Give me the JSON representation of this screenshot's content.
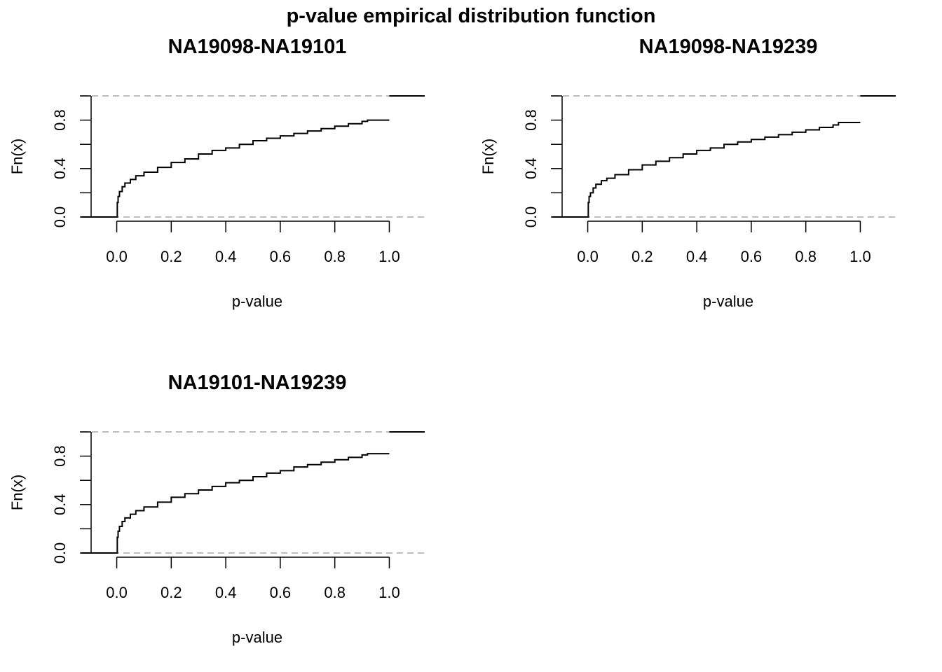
{
  "figure": {
    "title": "p-value empirical distribution function"
  },
  "chart_data": [
    {
      "type": "line",
      "step": true,
      "title": "NA19098-NA19101",
      "xlabel": "p-value",
      "ylabel": "Fn(x)",
      "xlim": [
        -0.13,
        1.13
      ],
      "ylim": [
        0,
        1
      ],
      "xticks": [
        "0.0",
        "0.2",
        "0.4",
        "0.6",
        "0.8",
        "1.0"
      ],
      "yticks": [
        "0.0",
        "0.4",
        "0.8"
      ],
      "reference_lines": [
        0,
        1
      ],
      "x": [
        0.0,
        0.002,
        0.005,
        0.01,
        0.02,
        0.03,
        0.05,
        0.07,
        0.1,
        0.15,
        0.2,
        0.25,
        0.3,
        0.35,
        0.4,
        0.45,
        0.5,
        0.55,
        0.6,
        0.65,
        0.7,
        0.75,
        0.8,
        0.85,
        0.9,
        0.92,
        1.0
      ],
      "y": [
        0.0,
        0.12,
        0.17,
        0.21,
        0.25,
        0.28,
        0.31,
        0.34,
        0.37,
        0.41,
        0.45,
        0.48,
        0.52,
        0.55,
        0.57,
        0.6,
        0.63,
        0.65,
        0.67,
        0.69,
        0.71,
        0.73,
        0.75,
        0.77,
        0.79,
        0.8,
        1.0
      ]
    },
    {
      "type": "line",
      "step": true,
      "title": "NA19098-NA19239",
      "xlabel": "p-value",
      "ylabel": "Fn(x)",
      "xlim": [
        -0.13,
        1.13
      ],
      "ylim": [
        0,
        1
      ],
      "xticks": [
        "0.0",
        "0.2",
        "0.4",
        "0.6",
        "0.8",
        "1.0"
      ],
      "yticks": [
        "0.0",
        "0.4",
        "0.8"
      ],
      "reference_lines": [
        0,
        1
      ],
      "x": [
        0.0,
        0.002,
        0.005,
        0.01,
        0.02,
        0.03,
        0.05,
        0.07,
        0.1,
        0.15,
        0.2,
        0.25,
        0.3,
        0.35,
        0.4,
        0.45,
        0.5,
        0.55,
        0.6,
        0.65,
        0.7,
        0.75,
        0.8,
        0.85,
        0.9,
        0.92,
        1.0
      ],
      "y": [
        0.0,
        0.12,
        0.17,
        0.2,
        0.24,
        0.27,
        0.3,
        0.32,
        0.35,
        0.39,
        0.43,
        0.46,
        0.49,
        0.52,
        0.55,
        0.57,
        0.6,
        0.62,
        0.64,
        0.66,
        0.68,
        0.7,
        0.72,
        0.74,
        0.76,
        0.78,
        1.0
      ]
    },
    {
      "type": "line",
      "step": true,
      "title": "NA19101-NA19239",
      "xlabel": "p-value",
      "ylabel": "Fn(x)",
      "xlim": [
        -0.13,
        1.13
      ],
      "ylim": [
        0,
        1
      ],
      "xticks": [
        "0.0",
        "0.2",
        "0.4",
        "0.6",
        "0.8",
        "1.0"
      ],
      "yticks": [
        "0.0",
        "0.4",
        "0.8"
      ],
      "reference_lines": [
        0,
        1
      ],
      "x": [
        0.0,
        0.002,
        0.005,
        0.01,
        0.02,
        0.03,
        0.05,
        0.07,
        0.1,
        0.15,
        0.2,
        0.25,
        0.3,
        0.35,
        0.4,
        0.45,
        0.5,
        0.55,
        0.6,
        0.65,
        0.7,
        0.75,
        0.8,
        0.85,
        0.9,
        0.92,
        1.0
      ],
      "y": [
        0.0,
        0.13,
        0.18,
        0.22,
        0.26,
        0.29,
        0.32,
        0.35,
        0.38,
        0.42,
        0.46,
        0.49,
        0.52,
        0.55,
        0.58,
        0.6,
        0.63,
        0.66,
        0.68,
        0.71,
        0.73,
        0.75,
        0.77,
        0.79,
        0.81,
        0.82,
        1.0
      ]
    }
  ],
  "colors": {
    "line": "#000000",
    "reference": "#BEBEBE",
    "axis": "#000000"
  }
}
